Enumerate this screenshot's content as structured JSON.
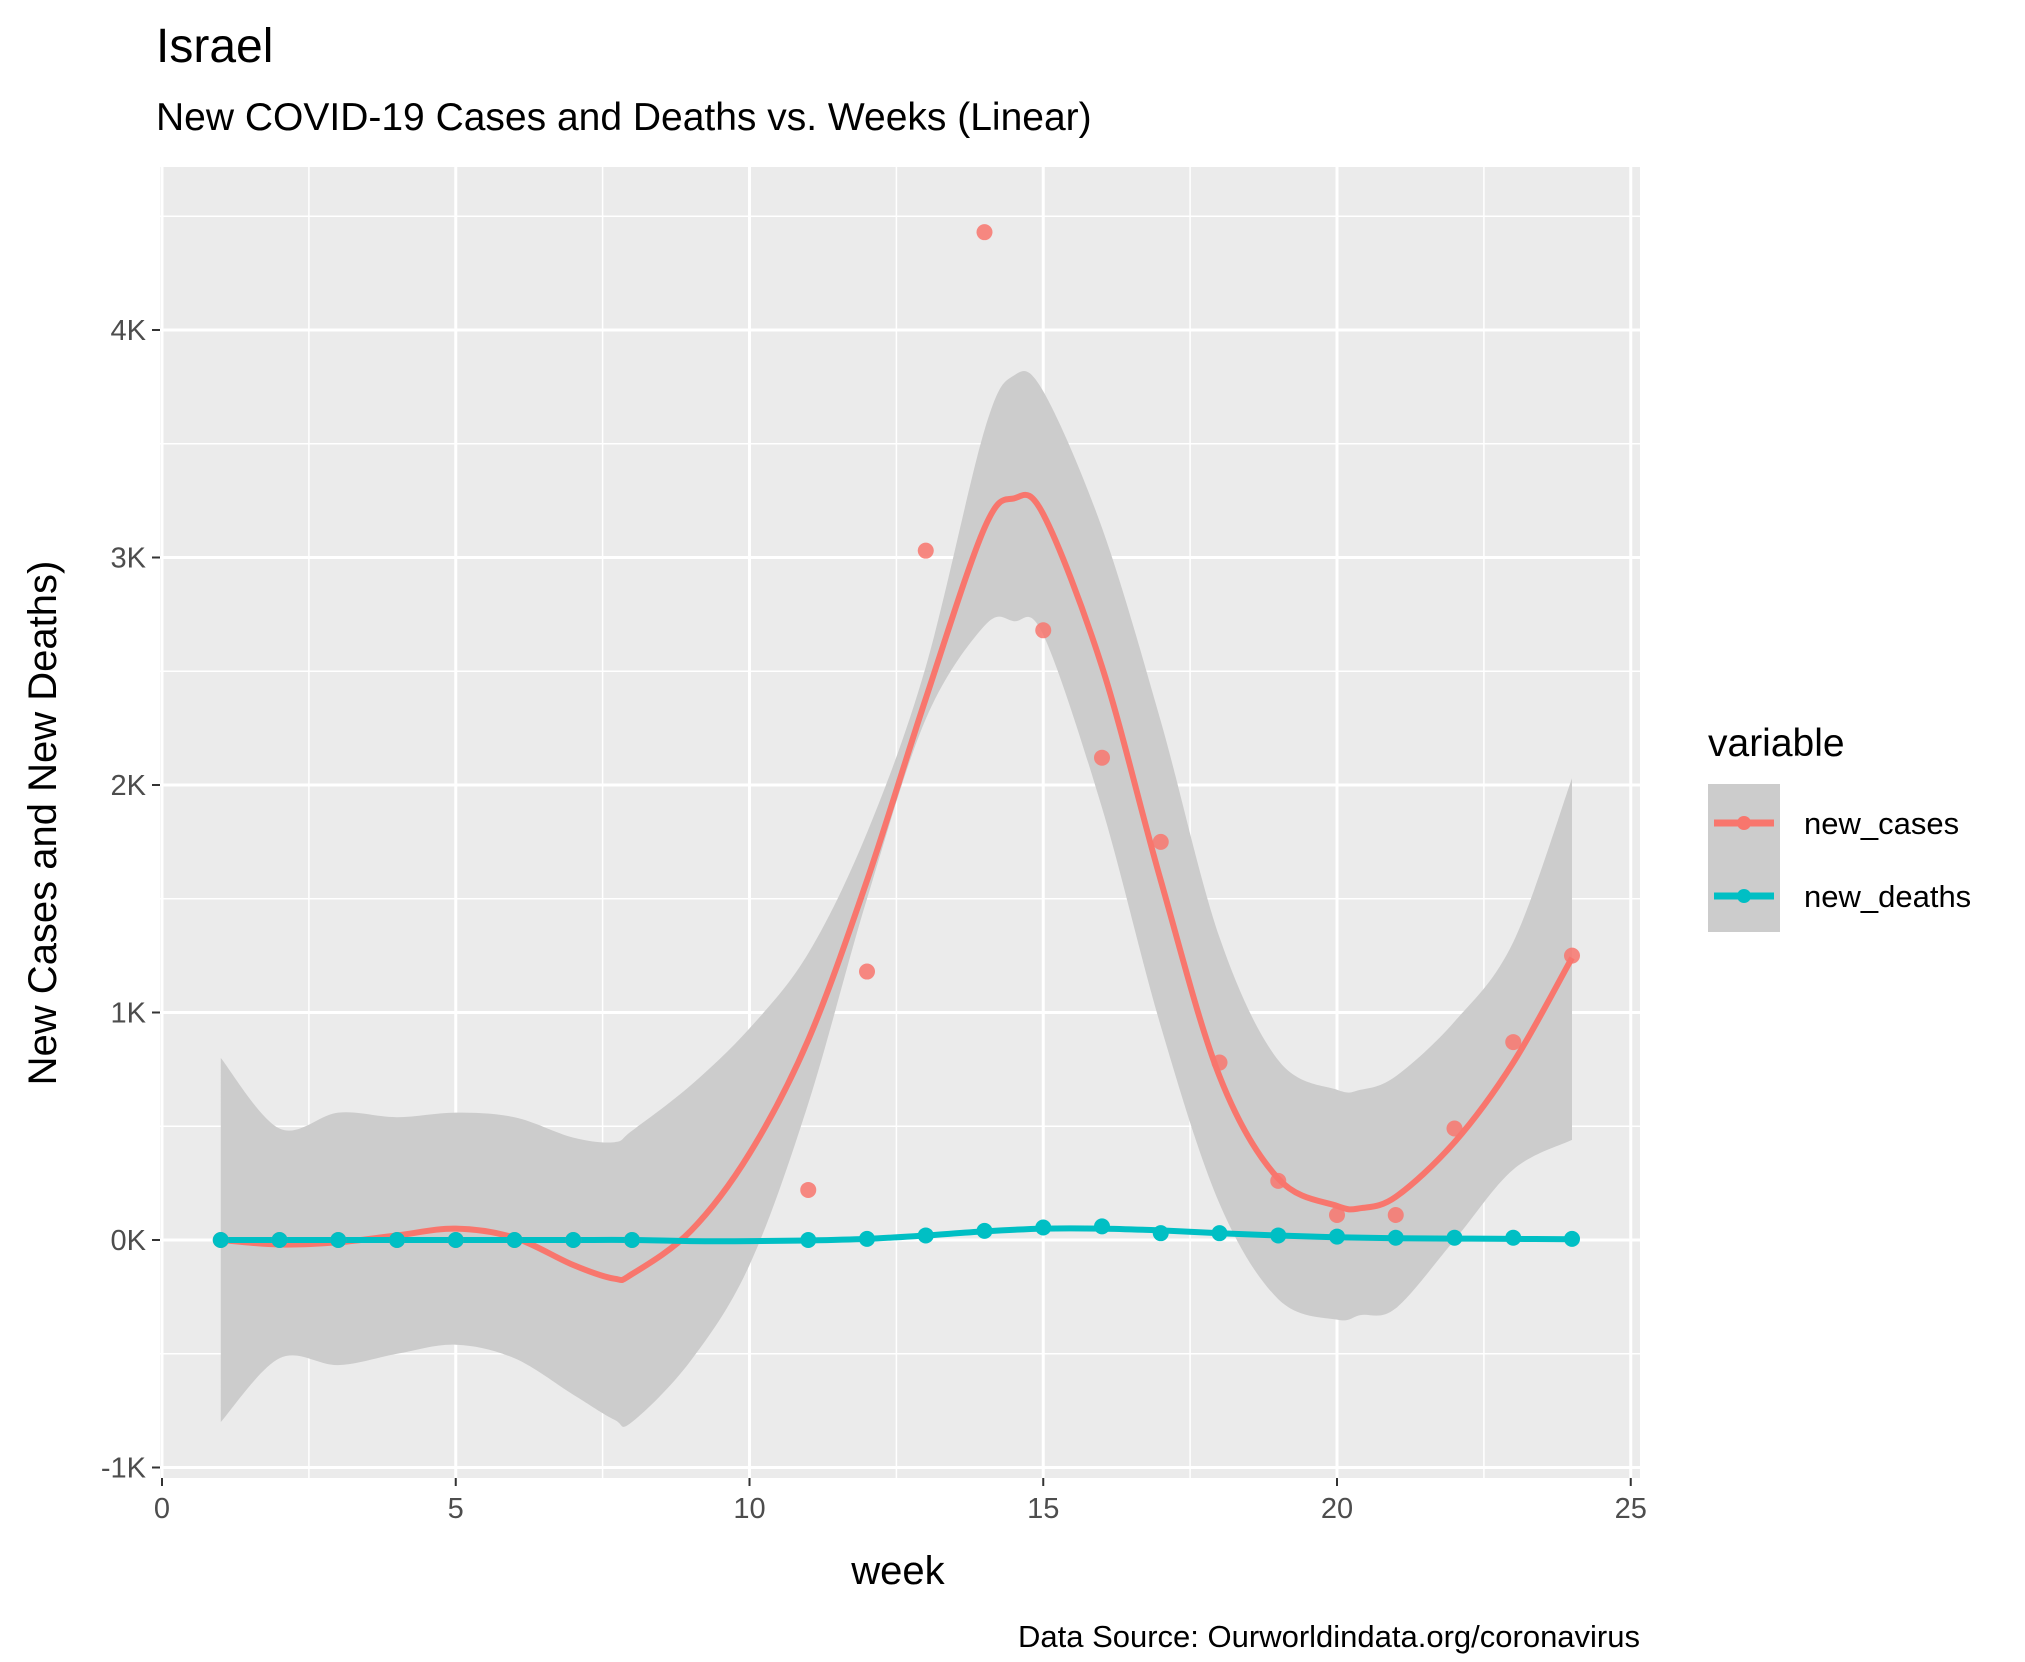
{
  "title": "Israel",
  "subtitle": "New COVID-19 Cases and Deaths vs. Weeks (Linear)",
  "caption": "Data Source: Ourworldindata.org/coronavirus",
  "colors": {
    "panel": "#EBEBEB",
    "grid": "#FFFFFF",
    "band": "#CCCCCC",
    "new_cases": "#F8766D",
    "new_deaths": "#00BFC4"
  },
  "chart_data": {
    "type": "scatter",
    "smoother": "loess",
    "xlabel": "week",
    "ylabel": "New Cases and New Deaths)",
    "xlim": [
      0,
      25
    ],
    "ylim": [
      -1000,
      4600
    ],
    "x_ticks": [
      {
        "value": 0,
        "label": "0"
      },
      {
        "value": 5,
        "label": "5"
      },
      {
        "value": 10,
        "label": "10"
      },
      {
        "value": 15,
        "label": "15"
      },
      {
        "value": 20,
        "label": "20"
      },
      {
        "value": 25,
        "label": "25"
      }
    ],
    "y_ticks": [
      {
        "value": -1000,
        "label": "-1K"
      },
      {
        "value": 0,
        "label": "0K"
      },
      {
        "value": 1000,
        "label": "1K"
      },
      {
        "value": 2000,
        "label": "2K"
      },
      {
        "value": 3000,
        "label": "3K"
      },
      {
        "value": 4000,
        "label": "4K"
      }
    ],
    "legend": {
      "title": "variable",
      "position": "right"
    },
    "series": [
      {
        "name": "new_cases",
        "x": [
          1,
          2,
          3,
          4,
          5,
          6,
          7,
          8,
          11,
          12,
          13,
          14,
          15,
          16,
          17,
          18,
          19,
          20,
          21,
          22,
          23,
          24
        ],
        "y": [
          0,
          0,
          0,
          0,
          0,
          0,
          0,
          0,
          220,
          1180,
          3030,
          4430,
          2680,
          2120,
          1750,
          780,
          260,
          110,
          110,
          490,
          870,
          1250
        ],
        "fit_x": [
          1,
          2,
          3,
          4,
          5,
          6,
          7,
          7.7,
          8,
          9,
          10,
          11,
          12,
          13,
          14,
          14.5,
          15,
          16,
          17,
          18,
          19,
          20,
          20.4,
          21,
          22,
          23,
          24
        ],
        "fit_y": [
          0,
          -20,
          -10,
          20,
          50,
          10,
          -110,
          -170,
          -150,
          40,
          380,
          880,
          1580,
          2380,
          3130,
          3260,
          3190,
          2520,
          1580,
          720,
          270,
          150,
          140,
          190,
          430,
          780,
          1240
        ],
        "band_lower": [
          -800,
          -520,
          -550,
          -500,
          -460,
          -520,
          -680,
          -790,
          -800,
          -530,
          -110,
          600,
          1500,
          2290,
          2700,
          2720,
          2660,
          1900,
          940,
          160,
          -260,
          -350,
          -330,
          -300,
          0,
          310,
          440
        ],
        "band_upper": [
          800,
          490,
          560,
          540,
          560,
          540,
          450,
          430,
          480,
          680,
          930,
          1260,
          1790,
          2520,
          3560,
          3800,
          3730,
          3130,
          2280,
          1330,
          790,
          660,
          660,
          720,
          960,
          1310,
          2030
        ]
      },
      {
        "name": "new_deaths",
        "x": [
          1,
          2,
          3,
          4,
          5,
          6,
          7,
          8,
          11,
          12,
          13,
          14,
          15,
          16,
          17,
          18,
          19,
          20,
          21,
          22,
          23,
          24
        ],
        "y": [
          0,
          0,
          0,
          0,
          0,
          0,
          0,
          0,
          0,
          5,
          20,
          40,
          55,
          60,
          30,
          30,
          20,
          15,
          10,
          10,
          10,
          5
        ],
        "fit_x": [
          1,
          2,
          3,
          4,
          5,
          6,
          7,
          8,
          9,
          10,
          11,
          12,
          13,
          14,
          15,
          16,
          17,
          18,
          19,
          20,
          21,
          22,
          23,
          24
        ],
        "fit_y": [
          0,
          0,
          0,
          0,
          0,
          0,
          0,
          0,
          -5,
          -5,
          -2,
          5,
          20,
          38,
          50,
          50,
          42,
          30,
          20,
          12,
          8,
          6,
          5,
          3
        ]
      }
    ]
  }
}
